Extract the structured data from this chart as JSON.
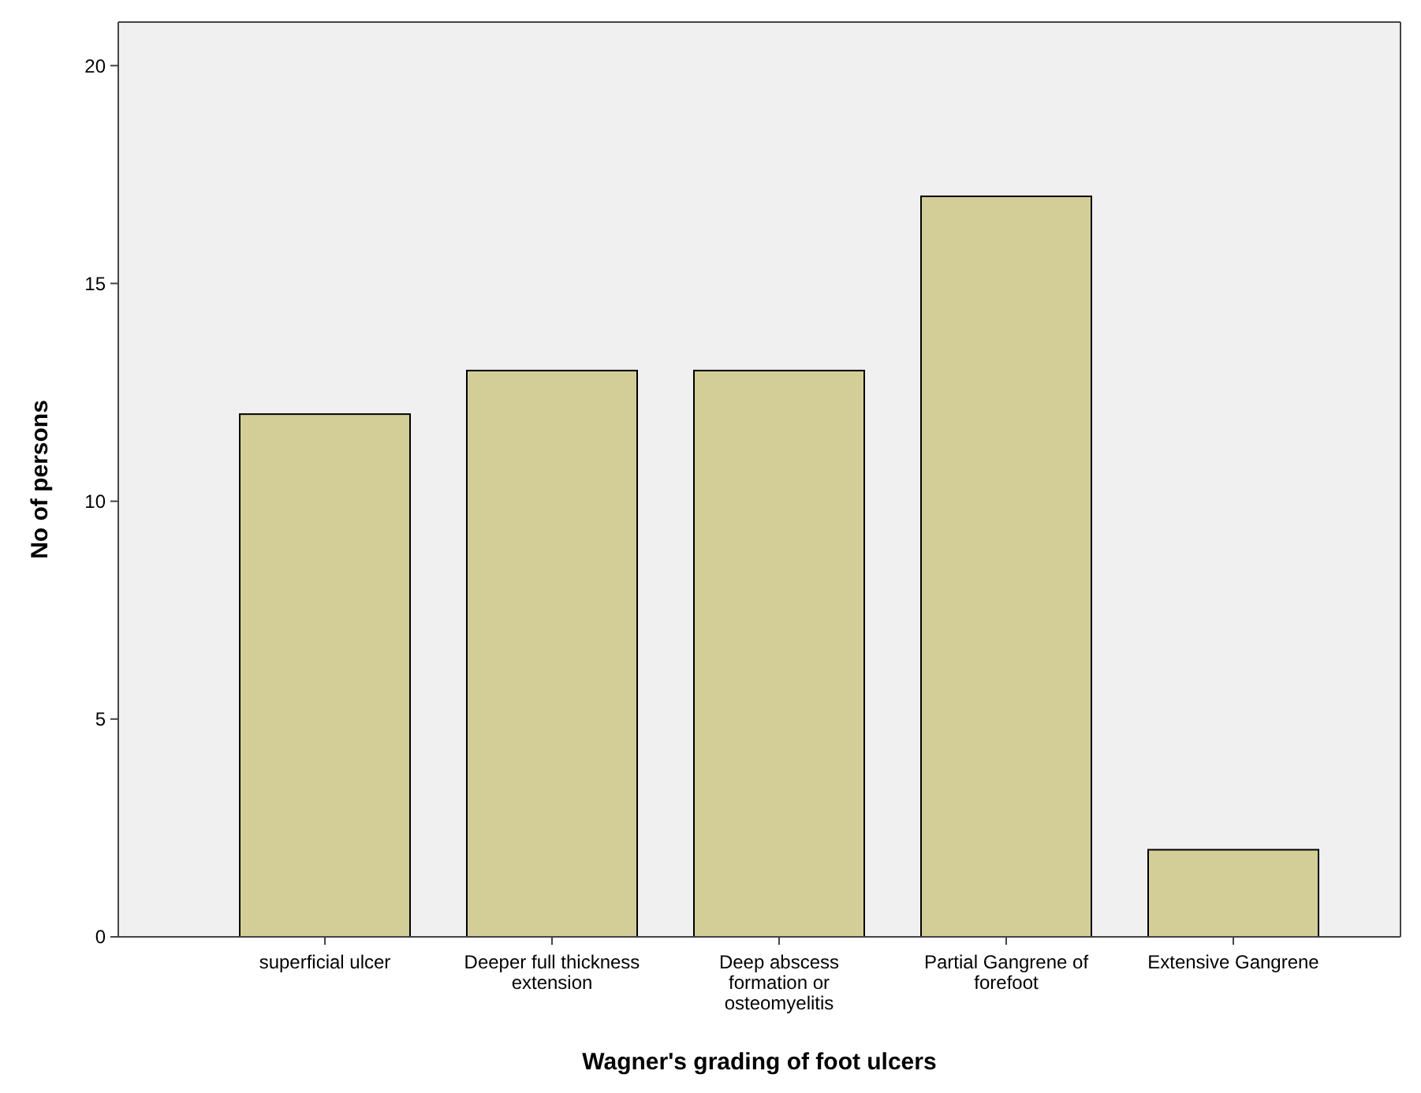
{
  "chart_data": {
    "type": "bar",
    "xlabel": "Wagner's grading of  foot ulcers",
    "ylabel": "No of persons",
    "categories": [
      "superficial ulcer",
      "Deeper full thickness extension",
      "Deep abscess formation or osteomyelitis",
      "Partial Gangrene of forefoot",
      "Extensive Gangrene"
    ],
    "values": [
      12,
      13,
      13,
      17,
      2
    ],
    "color": "#d3ce97",
    "ylim": [
      0,
      21
    ],
    "yticks": [
      0,
      5,
      10,
      15,
      20
    ]
  }
}
